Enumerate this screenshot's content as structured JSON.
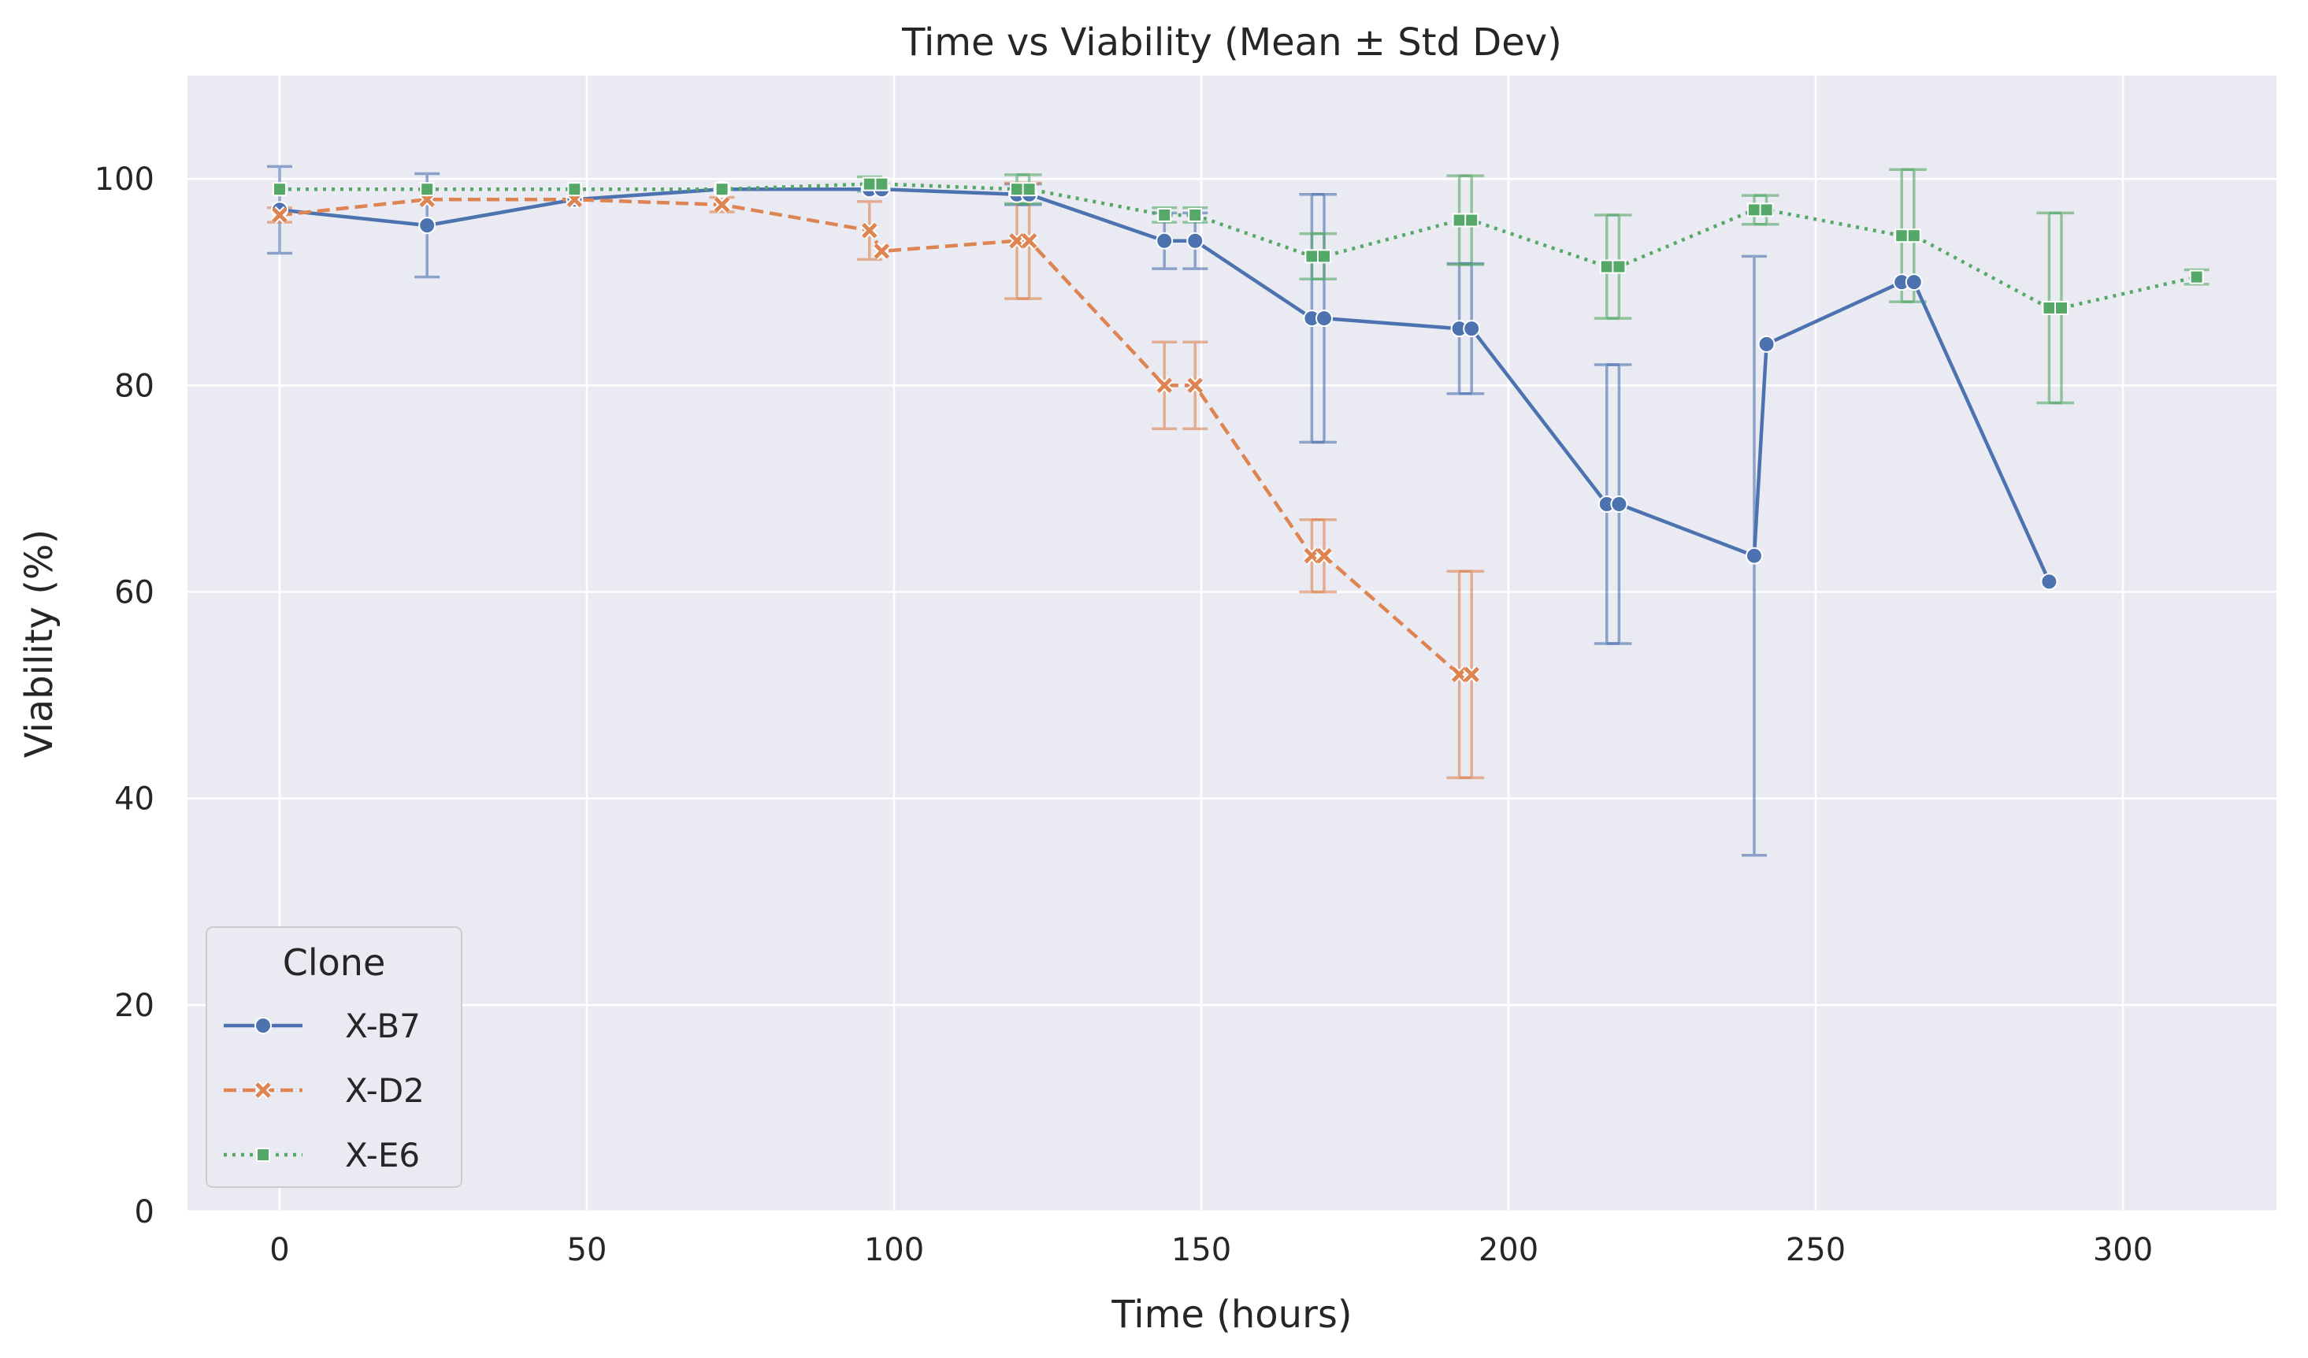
{
  "chart_data": {
    "type": "line",
    "title": "Time vs Viability (Mean ± Std Dev)",
    "xlabel": "Time (hours)",
    "ylabel": "Viability (%)",
    "xlim": [
      -15,
      325
    ],
    "ylim": [
      0,
      110
    ],
    "xticks": [
      0,
      50,
      100,
      150,
      200,
      250,
      300
    ],
    "yticks": [
      0,
      20,
      40,
      60,
      80,
      100
    ],
    "grid": true,
    "legend": {
      "title": "Clone",
      "position": "lower-left"
    },
    "series": [
      {
        "name": "X-B7",
        "color": "#4c72b0",
        "marker": "circle",
        "linestyle": "solid",
        "points": [
          {
            "x": 0,
            "y": 97,
            "err": 4.2
          },
          {
            "x": 24,
            "y": 95.5,
            "err": 5
          },
          {
            "x": 48,
            "y": 98,
            "err": null
          },
          {
            "x": 72,
            "y": 99,
            "err": null
          },
          {
            "x": 96,
            "y": 99,
            "err": null
          },
          {
            "x": 98,
            "y": 99,
            "err": null
          },
          {
            "x": 120,
            "y": 98.5,
            "err": 1
          },
          {
            "x": 122,
            "y": 98.5,
            "err": 1
          },
          {
            "x": 144,
            "y": 94,
            "err": 2.7
          },
          {
            "x": 149,
            "y": 94,
            "err": 2.7
          },
          {
            "x": 168,
            "y": 86.5,
            "err": 12
          },
          {
            "x": 170,
            "y": 86.5,
            "err": 12
          },
          {
            "x": 192,
            "y": 85.5,
            "err": 6.3
          },
          {
            "x": 194,
            "y": 85.5,
            "err": 6.3
          },
          {
            "x": 216,
            "y": 68.5,
            "err": 13.5
          },
          {
            "x": 218,
            "y": 68.5,
            "err": 13.5
          },
          {
            "x": 240,
            "y": 63.5,
            "err": 29
          },
          {
            "x": 242,
            "y": 84,
            "err": null
          },
          {
            "x": 264,
            "y": 90,
            "err": null
          },
          {
            "x": 266,
            "y": 90,
            "err": null
          },
          {
            "x": 288,
            "y": 61,
            "err": null
          }
        ]
      },
      {
        "name": "X-D2",
        "color": "#dd8452",
        "marker": "x",
        "linestyle": "dashed",
        "points": [
          {
            "x": 0,
            "y": 96.5,
            "err": 0.7
          },
          {
            "x": 24,
            "y": 98,
            "err": null
          },
          {
            "x": 48,
            "y": 98,
            "err": null
          },
          {
            "x": 72,
            "y": 97.5,
            "err": 0.7
          },
          {
            "x": 96,
            "y": 95,
            "err": 2.8
          },
          {
            "x": 98,
            "y": 93,
            "err": null
          },
          {
            "x": 120,
            "y": 94,
            "err": 5.6
          },
          {
            "x": 122,
            "y": 94,
            "err": 5.6
          },
          {
            "x": 144,
            "y": 80,
            "err": 4.2
          },
          {
            "x": 149,
            "y": 80,
            "err": 4.2
          },
          {
            "x": 168,
            "y": 63.5,
            "err": 3.5
          },
          {
            "x": 170,
            "y": 63.5,
            "err": 3.5
          },
          {
            "x": 192,
            "y": 52,
            "err": 10
          },
          {
            "x": 194,
            "y": 52,
            "err": 10
          }
        ]
      },
      {
        "name": "X-E6",
        "color": "#55a868",
        "marker": "square",
        "linestyle": "dotted",
        "points": [
          {
            "x": 0,
            "y": 99,
            "err": null
          },
          {
            "x": 24,
            "y": 99,
            "err": null
          },
          {
            "x": 48,
            "y": 99,
            "err": null
          },
          {
            "x": 72,
            "y": 99,
            "err": null
          },
          {
            "x": 96,
            "y": 99.5,
            "err": 0.7
          },
          {
            "x": 98,
            "y": 99.5,
            "err": null
          },
          {
            "x": 120,
            "y": 99,
            "err": 1.4
          },
          {
            "x": 122,
            "y": 99,
            "err": 1.4
          },
          {
            "x": 144,
            "y": 96.5,
            "err": 0.7
          },
          {
            "x": 149,
            "y": 96.5,
            "err": 0.7
          },
          {
            "x": 168,
            "y": 92.5,
            "err": 2.2
          },
          {
            "x": 170,
            "y": 92.5,
            "err": 2.2
          },
          {
            "x": 192,
            "y": 96,
            "err": 4.3
          },
          {
            "x": 194,
            "y": 96,
            "err": 4.3
          },
          {
            "x": 216,
            "y": 91.5,
            "err": 5
          },
          {
            "x": 218,
            "y": 91.5,
            "err": 5
          },
          {
            "x": 240,
            "y": 97,
            "err": 1.4
          },
          {
            "x": 242,
            "y": 97,
            "err": 1.4
          },
          {
            "x": 264,
            "y": 94.5,
            "err": 6.4
          },
          {
            "x": 266,
            "y": 94.5,
            "err": 6.4
          },
          {
            "x": 288,
            "y": 87.5,
            "err": 9.2
          },
          {
            "x": 290,
            "y": 87.5,
            "err": 9.2
          },
          {
            "x": 312,
            "y": 90.5,
            "err": 0.7
          }
        ]
      }
    ]
  }
}
